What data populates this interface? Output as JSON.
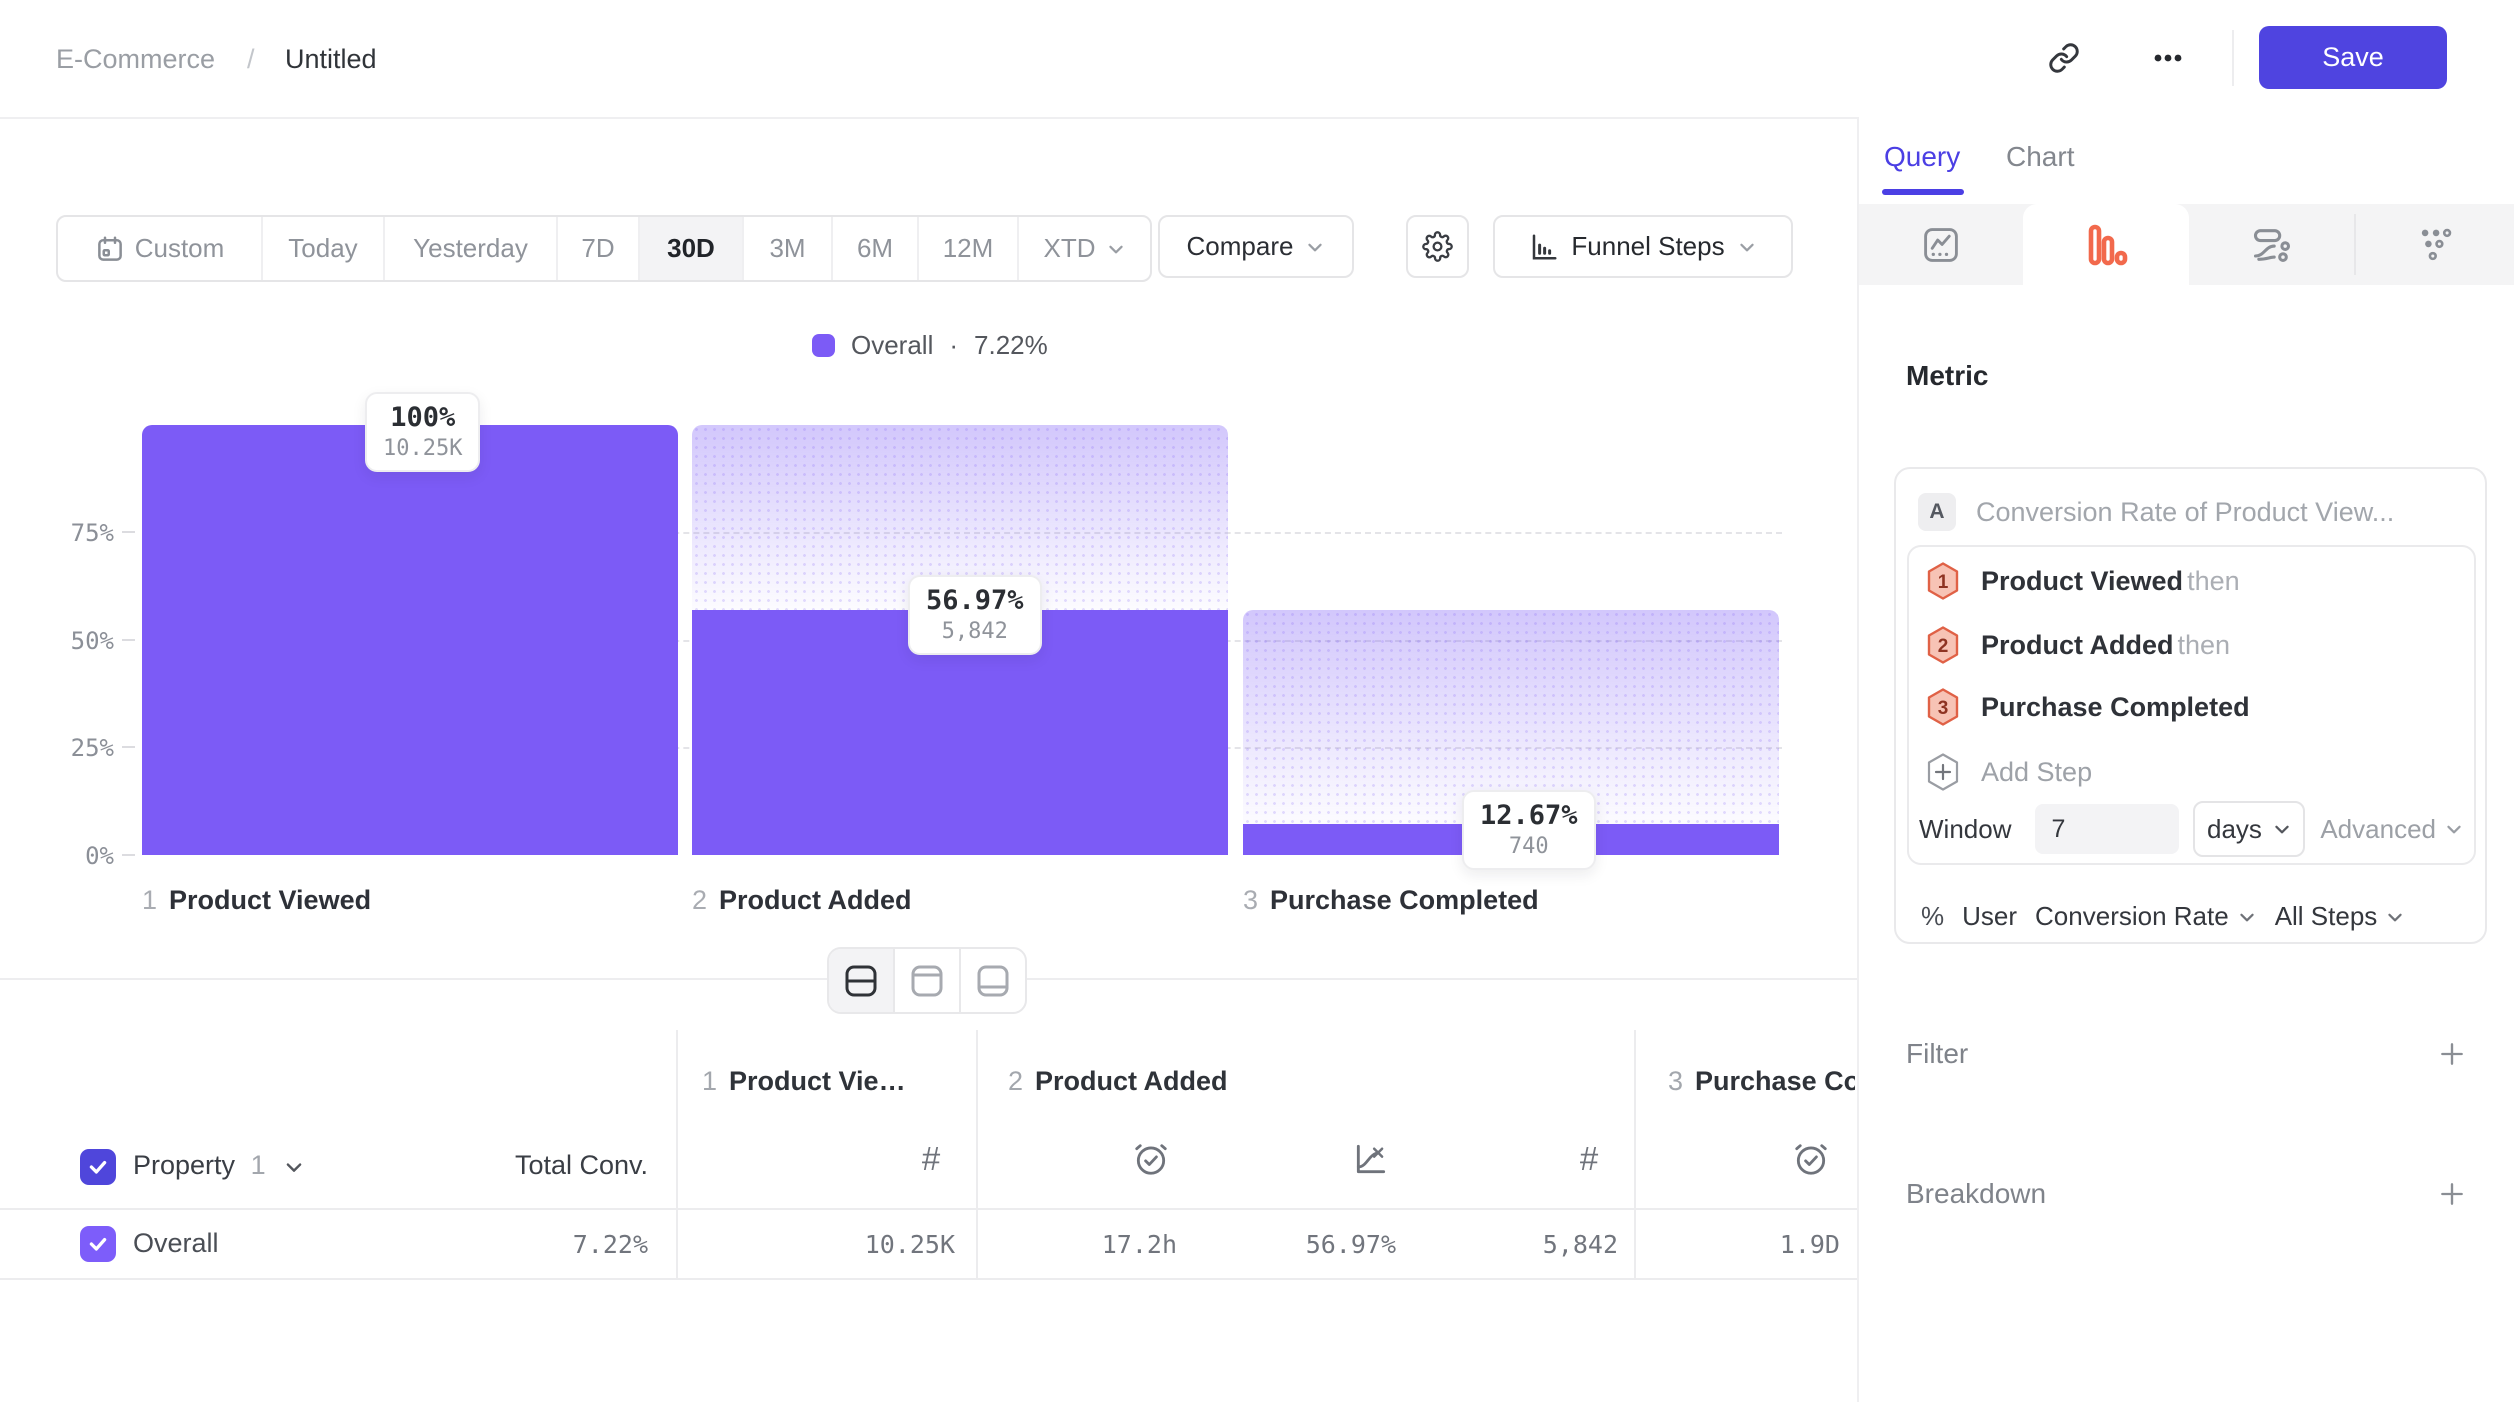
{
  "header": {
    "breadcrumb": {
      "parent": "E-Commerce",
      "separator": "/",
      "current": "Untitled"
    },
    "save_label": "Save"
  },
  "toolbar": {
    "date_ranges": [
      "Custom",
      "Today",
      "Yesterday",
      "7D",
      "30D",
      "3M",
      "6M",
      "12M",
      "XTD"
    ],
    "active_range": "30D",
    "compare_label": "Compare",
    "chart_type_label": "Funnel Steps"
  },
  "legend": {
    "series": "Overall",
    "separator": "·",
    "value": "7.22%",
    "color": "#7C5BF6"
  },
  "chart_data": {
    "type": "funnel",
    "series": "Overall",
    "overall_conversion": "7.22%",
    "y_ticks": [
      "75%",
      "50%",
      "25%",
      "0%"
    ],
    "ylim": [
      0,
      100
    ],
    "grid": "dashed horizontal at 25/50/75",
    "legend_position": "top-center",
    "steps": [
      {
        "index": "1",
        "label": "Product Viewed",
        "percent_label": "100%",
        "count_label": "10.25K",
        "height_pct": 100,
        "count": 10250
      },
      {
        "index": "2",
        "label": "Product Added",
        "percent_label": "56.97%",
        "count_label": "5,842",
        "height_pct": 56.97,
        "count": 5842
      },
      {
        "index": "3",
        "label": "Purchase Completed",
        "percent_label": "12.67%",
        "count_label": "740",
        "height_pct": 7.22,
        "count": 740
      }
    ]
  },
  "table": {
    "property_label": "Property",
    "property_index": "1",
    "total_conv_header": "Total Conv.",
    "row": {
      "label": "Overall",
      "total_conv": "7.22%",
      "values": [
        "10.25K",
        "17.2h",
        "56.97%",
        "5,842",
        "1.9D"
      ]
    }
  },
  "panel": {
    "tabs": {
      "query": "Query",
      "chart": "Chart"
    },
    "metric": {
      "heading": "Metric",
      "badge": "A",
      "summary": "Conversion Rate of Product View...",
      "steps": [
        {
          "num": "1",
          "label": "Product Viewed",
          "suffix": "then"
        },
        {
          "num": "2",
          "label": "Product Added",
          "suffix": "then"
        },
        {
          "num": "3",
          "label": "Purchase Completed",
          "suffix": ""
        }
      ],
      "add_step_label": "Add Step",
      "window_label": "Window",
      "window_value": "7",
      "window_unit": "days",
      "advanced_label": "Advanced",
      "measure_prefix": "%",
      "measure_entity": "User",
      "measure_type": "Conversion Rate",
      "measure_scope": "All Steps"
    },
    "filter_label": "Filter",
    "breakdown_label": "Breakdown"
  },
  "colors": {
    "accent_indigo": "#4F44E0",
    "bar_purple": "#7C5BF6",
    "selected_tab_orange": "#F2694C",
    "step_badge_fill": "#F7C3B5",
    "step_badge_stroke": "#E06146"
  }
}
